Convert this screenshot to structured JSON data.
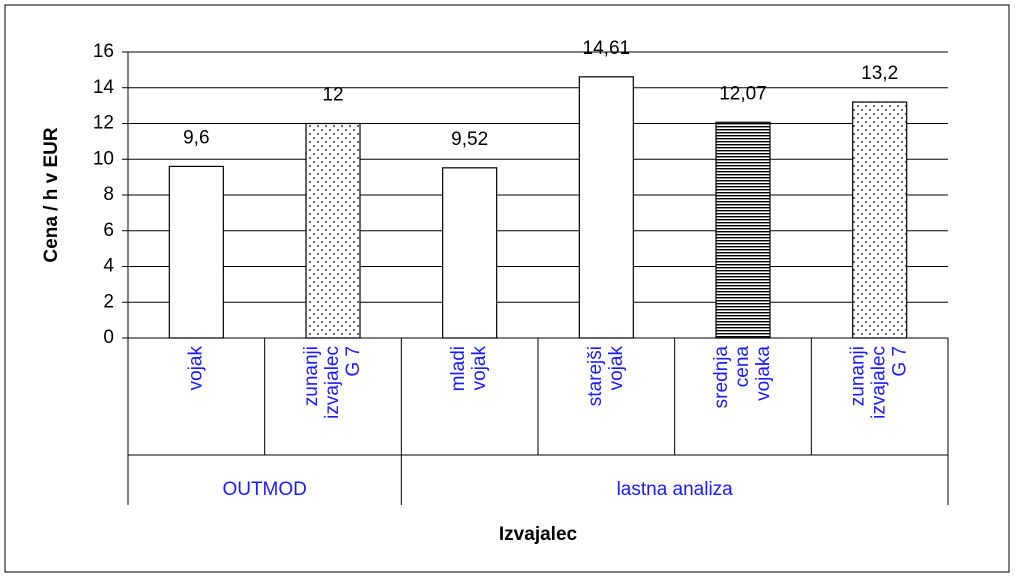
{
  "chart_data": {
    "type": "bar",
    "categories": [
      [
        "vojak"
      ],
      [
        "zunanji",
        "izvajalec",
        "G 7"
      ],
      [
        "mladi",
        "vojak"
      ],
      [
        "starejši",
        "vojak"
      ],
      [
        "srednja",
        "cena",
        "vojaka"
      ],
      [
        "zunanji",
        "izvajalec",
        "G 7"
      ]
    ],
    "groups": [
      "OUTMOD",
      "OUTMOD",
      "lastna analiza",
      "lastna analiza",
      "lastna analiza",
      "lastna analiza"
    ],
    "values": [
      9.6,
      12,
      9.52,
      14.61,
      12.07,
      13.2
    ],
    "value_labels": [
      "9,6",
      "12",
      "9,52",
      "14,61",
      "12,07",
      "13,2"
    ],
    "patterns": [
      "none",
      "dots",
      "none",
      "none",
      "hlines",
      "dots"
    ],
    "ylabel": "Cena /  h v EUR",
    "xlabel": "Izvajalec",
    "ylim": [
      0,
      16
    ],
    "yticks": [
      0,
      2,
      4,
      6,
      8,
      10,
      12,
      14,
      16
    ],
    "grid": true
  }
}
